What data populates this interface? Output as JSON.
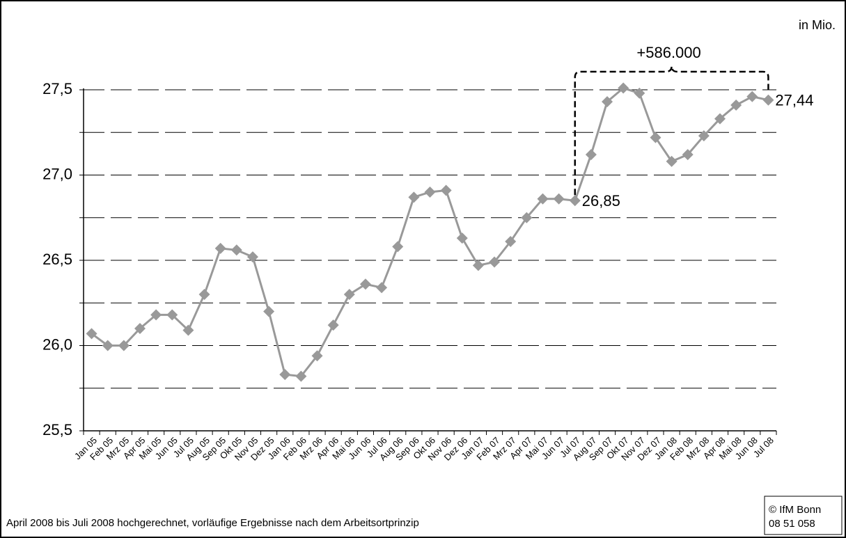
{
  "chart_data": {
    "type": "line",
    "unit_label": "in Mio.",
    "annotation": "+586.000",
    "footnote": "April 2008 bis Juli 2008 hochgerechnet, vorläufige Ergebnisse nach dem Arbeitsortprinzip",
    "source": [
      "© IfM Bonn",
      "08 51 058"
    ],
    "categories": [
      "Jan 05",
      "Feb 05",
      "Mrz 05",
      "Apr 05",
      "Mai 05",
      "Jun 05",
      "Jul 05",
      "Aug 05",
      "Sep 05",
      "Okt 05",
      "Nov 05",
      "Dez 05",
      "Jan 06",
      "Feb 06",
      "Mrz 06",
      "Apr 06",
      "Mai 06",
      "Jun 06",
      "Jul 06",
      "Aug 06",
      "Sep 06",
      "Okt 06",
      "Nov 06",
      "Dez 06",
      "Jan 07",
      "Feb 07",
      "Mrz 07",
      "Apr 07",
      "Mai 07",
      "Jun 07",
      "Jul 07",
      "Aug 07",
      "Sep 07",
      "Okt 07",
      "Nov 07",
      "Dez 07",
      "Jan 08",
      "Feb 08",
      "Mrz 08",
      "Apr 08",
      "Mai 08",
      "Jun 08",
      "Jul 08"
    ],
    "values": [
      26.07,
      26.0,
      26.0,
      26.1,
      26.18,
      26.18,
      26.09,
      26.3,
      26.57,
      26.56,
      26.52,
      26.2,
      25.83,
      25.82,
      25.94,
      26.12,
      26.3,
      26.36,
      26.34,
      26.58,
      26.87,
      26.9,
      26.91,
      26.63,
      26.47,
      26.49,
      26.61,
      26.75,
      26.86,
      26.86,
      26.85,
      27.12,
      27.43,
      27.51,
      27.48,
      27.22,
      27.08,
      27.12,
      27.23,
      27.33,
      27.41,
      27.46,
      27.44
    ],
    "value_labels": [
      null,
      null,
      null,
      null,
      null,
      null,
      null,
      null,
      null,
      null,
      null,
      null,
      null,
      null,
      null,
      null,
      null,
      null,
      null,
      null,
      null,
      null,
      null,
      null,
      null,
      null,
      null,
      null,
      null,
      null,
      "26,85",
      null,
      null,
      null,
      null,
      null,
      null,
      null,
      null,
      null,
      null,
      null,
      "27,44"
    ],
    "color": "#999999",
    "ylim": [
      25.5,
      27.5
    ],
    "yticks": [
      {
        "value": 25.5,
        "label": "25,5"
      },
      {
        "value": 26.0,
        "label": "26,0"
      },
      {
        "value": 26.5,
        "label": "26,5"
      },
      {
        "value": 27.0,
        "label": "27,0"
      },
      {
        "value": 27.5,
        "label": "27,5"
      }
    ],
    "grid_lines": [
      25.75,
      26.0,
      26.25,
      26.5,
      26.75,
      27.0,
      27.25,
      27.5
    ]
  }
}
